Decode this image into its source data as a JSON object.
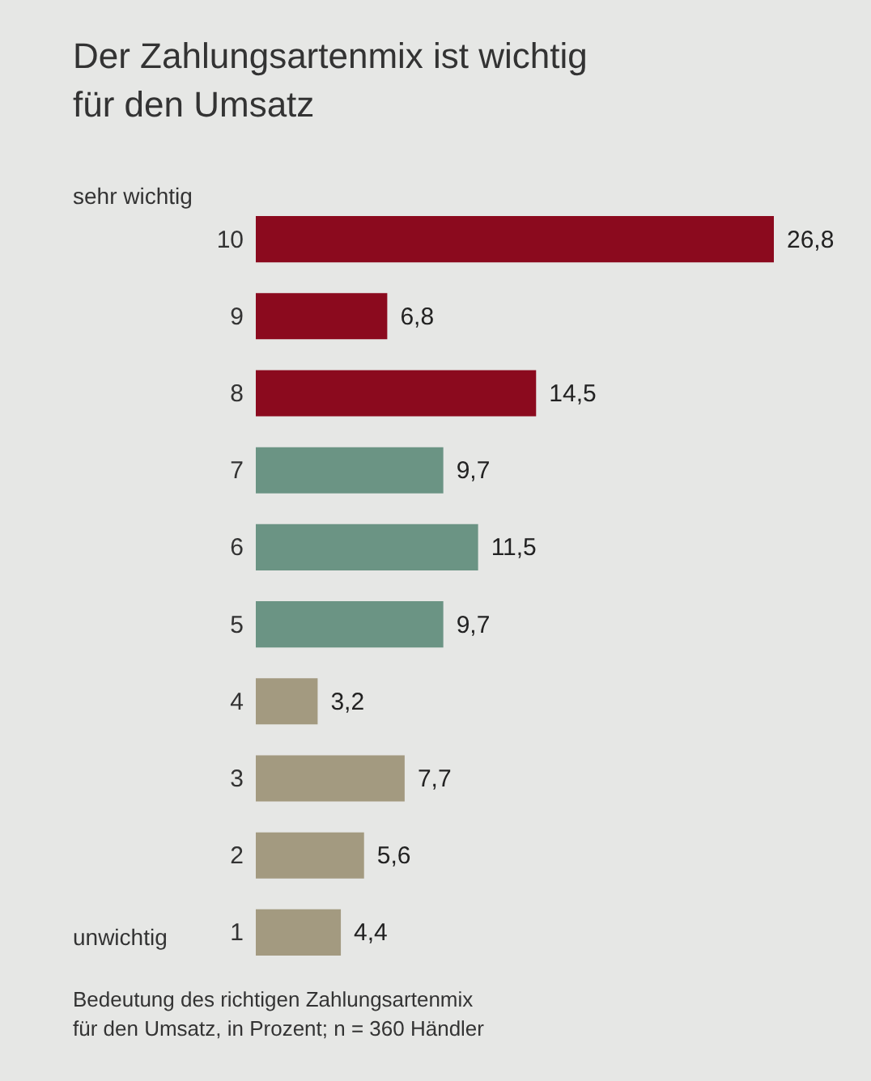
{
  "chart_data": {
    "type": "bar",
    "orientation": "horizontal",
    "title": "Der Zahlungsartenmix ist wichtig\nfür den Umsatz",
    "categories": [
      "10",
      "9",
      "8",
      "7",
      "6",
      "5",
      "4",
      "3",
      "2",
      "1"
    ],
    "values": [
      26.8,
      6.8,
      14.5,
      9.7,
      11.5,
      9.7,
      3.2,
      7.7,
      5.6,
      4.4
    ],
    "value_labels": [
      "26,8",
      "6,8",
      "14,5",
      "9,7",
      "11,5",
      "9,7",
      "3,2",
      "7,7",
      "5,6",
      "4,4"
    ],
    "colors": [
      "#8b0a1e",
      "#8b0a1e",
      "#8b0a1e",
      "#6b9484",
      "#6b9484",
      "#6b9484",
      "#a39a80",
      "#a39a80",
      "#a39a80",
      "#a39a80"
    ],
    "annotations": [
      "sehr wichtig",
      "unwichtig",
      "Bedeutung des richtigen Zahlungsartenmix\nfür den Umsatz, in Prozent; n = 360 Händler"
    ],
    "grid": false
  }
}
